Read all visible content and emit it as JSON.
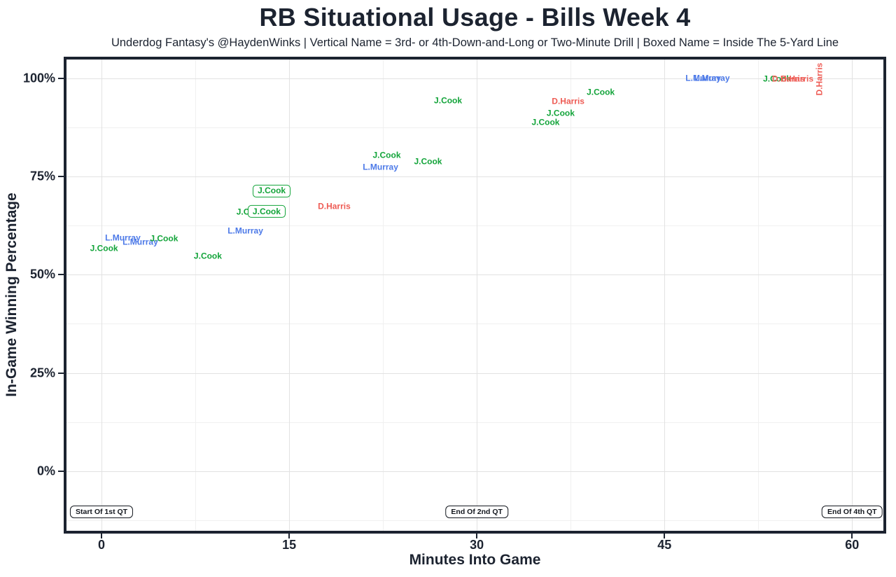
{
  "title": "RB Situational Usage - Bills Week 4",
  "subtitle": "Underdog Fantasy's @HaydenWinks | Vertical Name = 3rd- or 4th-Down-and-Long or Two-Minute Drill | Boxed Name = Inside The 5-Yard Line",
  "colors": {
    "text": "#1c2330",
    "panel_border": "#1c2330",
    "grid_major": "#e2e2e2",
    "grid_minor": "#f0f0f0",
    "annotation_border": "#14181f",
    "background": "#ffffff"
  },
  "chart_data": {
    "type": "scatter",
    "title": "RB Situational Usage - Bills Week 4",
    "subtitle": "Underdog Fantasy's @HaydenWinks | Vertical Name = 3rd- or 4th-Down-and-Long or Two-Minute Drill | Boxed Name = Inside The 5-Yard Line",
    "xlabel": "Minutes Into Game",
    "ylabel": "In-Game Winning Percentage",
    "xlim": [
      -2.8,
      62.5
    ],
    "ylim": [
      -15.2,
      104.8
    ],
    "grid": true,
    "legend_position": "none",
    "x_ticks": [
      {
        "value": 0,
        "label": "0"
      },
      {
        "value": 15,
        "label": "15"
      },
      {
        "value": 30,
        "label": "30"
      },
      {
        "value": 45,
        "label": "45"
      },
      {
        "value": 60,
        "label": "60"
      }
    ],
    "x_minor": [
      7.5,
      22.5,
      37.5,
      52.5
    ],
    "y_ticks": [
      {
        "value": 0,
        "label": "0%"
      },
      {
        "value": 25,
        "label": "25%"
      },
      {
        "value": 50,
        "label": "50%"
      },
      {
        "value": 75,
        "label": "75%"
      },
      {
        "value": 100,
        "label": "100%"
      }
    ],
    "y_minor": [
      -12.5,
      12.5,
      37.5,
      62.5,
      87.5
    ],
    "players": {
      "J.Cook": "#13a43a",
      "L.Murray": "#4d7ae8",
      "D.Harris": "#ee5c55"
    },
    "points": [
      {
        "x": 0.2,
        "y": 56.7,
        "label": "J.Cook",
        "player": "J.Cook",
        "style": "plain"
      },
      {
        "x": 1.7,
        "y": 59.4,
        "label": "L.Murray",
        "player": "L.Murray",
        "style": "plain"
      },
      {
        "x": 3.1,
        "y": 58.3,
        "label": "L.Murray",
        "player": "L.Murray",
        "style": "plain"
      },
      {
        "x": 5.0,
        "y": 59.2,
        "label": "J.Cook",
        "player": "J.Cook",
        "style": "plain"
      },
      {
        "x": 8.5,
        "y": 54.7,
        "label": "J.Cook",
        "player": "J.Cook",
        "style": "plain"
      },
      {
        "x": 11.5,
        "y": 61.1,
        "label": "L.Murray",
        "player": "L.Murray",
        "style": "plain"
      },
      {
        "x": 11.9,
        "y": 66.0,
        "label": "J.Cook",
        "player": "J.Cook",
        "style": "plain"
      },
      {
        "x": 13.2,
        "y": 66.1,
        "label": "J.Cook",
        "player": "J.Cook",
        "style": "boxed"
      },
      {
        "x": 13.6,
        "y": 71.3,
        "label": "J.Cook",
        "player": "J.Cook",
        "style": "boxed"
      },
      {
        "x": 18.6,
        "y": 67.4,
        "label": "D.Harris",
        "player": "D.Harris",
        "style": "plain"
      },
      {
        "x": 22.3,
        "y": 77.4,
        "label": "L.Murray",
        "player": "L.Murray",
        "style": "plain"
      },
      {
        "x": 22.8,
        "y": 80.4,
        "label": "J.Cook",
        "player": "J.Cook",
        "style": "plain"
      },
      {
        "x": 26.1,
        "y": 78.8,
        "label": "J.Cook",
        "player": "J.Cook",
        "style": "plain"
      },
      {
        "x": 27.7,
        "y": 94.2,
        "label": "J.Cook",
        "player": "J.Cook",
        "style": "plain"
      },
      {
        "x": 35.5,
        "y": 88.8,
        "label": "J.Cook",
        "player": "J.Cook",
        "style": "plain"
      },
      {
        "x": 36.7,
        "y": 91.1,
        "label": "J.Cook",
        "player": "J.Cook",
        "style": "plain"
      },
      {
        "x": 37.3,
        "y": 94.1,
        "label": "D.Harris",
        "player": "D.Harris",
        "style": "plain"
      },
      {
        "x": 39.9,
        "y": 96.4,
        "label": "J.Cook",
        "player": "J.Cook",
        "style": "plain"
      },
      {
        "x": 48.1,
        "y": 100.0,
        "label": "L.Murray",
        "player": "L.Murray",
        "style": "plain"
      },
      {
        "x": 48.8,
        "y": 100.0,
        "label": "L.Murray",
        "player": "L.Murray",
        "style": "plain"
      },
      {
        "x": 54.0,
        "y": 99.8,
        "label": "J.Cook",
        "player": "J.Cook",
        "style": "plain"
      },
      {
        "x": 54.9,
        "y": 99.8,
        "label": "D.Harris",
        "player": "D.Harris",
        "style": "plain"
      },
      {
        "x": 55.6,
        "y": 99.8,
        "label": "D.Harris",
        "player": "D.Harris",
        "style": "plain"
      },
      {
        "x": 57.4,
        "y": 99.8,
        "label": "D.Harris",
        "player": "D.Harris",
        "style": "vertical"
      }
    ],
    "annotations": [
      {
        "x": 0,
        "y": -10.3,
        "label": "Start Of 1st QT"
      },
      {
        "x": 30,
        "y": -10.3,
        "label": "End Of 2nd QT"
      },
      {
        "x": 60,
        "y": -10.3,
        "label": "End Of 4th QT"
      }
    ]
  }
}
